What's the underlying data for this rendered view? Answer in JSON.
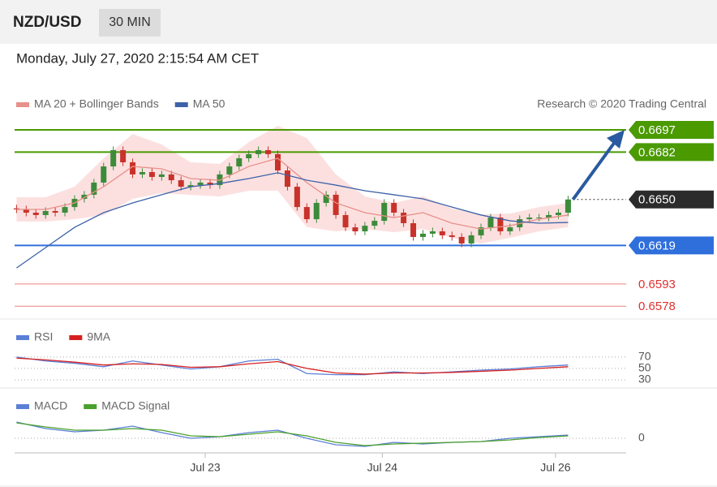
{
  "header": {
    "symbol": "NZD/USD",
    "interval": "30 MIN",
    "timestamp": "Monday, July 27, 2020 2:15:54 AM CET"
  },
  "chart_data": [
    {
      "type": "candlestick",
      "source": "Research © 2020 Trading Central",
      "xlim": [
        -0.2,
        63
      ],
      "ylim": [
        0.6571,
        0.6703
      ],
      "candles": {
        "up_color": "#3c8b3a",
        "down_color": "#c8322a",
        "x": [
          0,
          1,
          2,
          3,
          4,
          5,
          6,
          7,
          8,
          9,
          10,
          11,
          12,
          13,
          14,
          15,
          16,
          17,
          18,
          19,
          20,
          21,
          22,
          23,
          24,
          25,
          26,
          27,
          28,
          29,
          30,
          31,
          32,
          33,
          34,
          35,
          36,
          37,
          38,
          39,
          40,
          41,
          42,
          43,
          44,
          45,
          46,
          47,
          48,
          49,
          50,
          51,
          52,
          53,
          54,
          55,
          56,
          57
        ],
        "open": [
          0.6644,
          0.66433,
          0.66411,
          0.66395,
          0.66422,
          0.66411,
          0.66449,
          0.66504,
          0.66532,
          0.66614,
          0.66723,
          0.66833,
          0.66751,
          0.66669,
          0.66685,
          0.66652,
          0.66669,
          0.6663,
          0.66586,
          0.66597,
          0.66614,
          0.66597,
          0.66669,
          0.66723,
          0.66778,
          0.66806,
          0.66833,
          0.66806,
          0.66696,
          0.66586,
          0.66449,
          0.66367,
          0.66477,
          0.66532,
          0.66395,
          0.66312,
          0.66285,
          0.66323,
          0.66356,
          0.66477,
          0.66411,
          0.6634,
          0.66247,
          0.66269,
          0.66285,
          0.66258,
          0.66247,
          0.66203,
          0.66258,
          0.66312,
          0.66378,
          0.66285,
          0.66312,
          0.66367,
          0.66378,
          0.66378,
          0.66395,
          0.66411
        ],
        "high": [
          0.66465,
          0.66458,
          0.66436,
          0.66447,
          0.66447,
          0.66474,
          0.66529,
          0.66557,
          0.66639,
          0.66748,
          0.66858,
          0.66858,
          0.66776,
          0.6671,
          0.6671,
          0.66694,
          0.66694,
          0.66655,
          0.66622,
          0.66639,
          0.66639,
          0.66694,
          0.66748,
          0.66803,
          0.66831,
          0.66858,
          0.66858,
          0.66831,
          0.66721,
          0.66611,
          0.66474,
          0.66502,
          0.66557,
          0.66557,
          0.6642,
          0.66337,
          0.66348,
          0.66381,
          0.66502,
          0.66502,
          0.66436,
          0.66365,
          0.66294,
          0.6631,
          0.6631,
          0.66283,
          0.66272,
          0.66283,
          0.66337,
          0.66403,
          0.66403,
          0.66337,
          0.66392,
          0.66403,
          0.66403,
          0.6642,
          0.66436,
          0.66525
        ],
        "low": [
          0.66408,
          0.66386,
          0.6637,
          0.6637,
          0.66386,
          0.66386,
          0.66424,
          0.66479,
          0.66507,
          0.66589,
          0.66698,
          0.66726,
          0.66644,
          0.66644,
          0.66627,
          0.66627,
          0.66605,
          0.66561,
          0.66561,
          0.66572,
          0.66572,
          0.66572,
          0.66644,
          0.66698,
          0.66753,
          0.66781,
          0.66781,
          0.66671,
          0.66561,
          0.66424,
          0.66342,
          0.66342,
          0.66452,
          0.6637,
          0.66287,
          0.6626,
          0.6626,
          0.66298,
          0.66331,
          0.66386,
          0.66315,
          0.66222,
          0.66222,
          0.66244,
          0.66233,
          0.66222,
          0.66178,
          0.66178,
          0.66233,
          0.66287,
          0.6626,
          0.6626,
          0.66287,
          0.66342,
          0.66353,
          0.66353,
          0.6637,
          0.66386
        ],
        "close": [
          0.66433,
          0.66411,
          0.66395,
          0.66422,
          0.66411,
          0.66449,
          0.66504,
          0.66532,
          0.66614,
          0.66723,
          0.66833,
          0.66751,
          0.66669,
          0.66685,
          0.66652,
          0.66669,
          0.6663,
          0.66586,
          0.66597,
          0.66614,
          0.66597,
          0.66669,
          0.66723,
          0.66778,
          0.66806,
          0.66833,
          0.66806,
          0.66696,
          0.66586,
          0.66449,
          0.66367,
          0.66477,
          0.66532,
          0.66395,
          0.66312,
          0.66285,
          0.66323,
          0.66356,
          0.66477,
          0.66411,
          0.6634,
          0.66247,
          0.66269,
          0.66285,
          0.66258,
          0.66247,
          0.66203,
          0.66258,
          0.66312,
          0.66378,
          0.66285,
          0.66312,
          0.66367,
          0.66378,
          0.66378,
          0.66395,
          0.66411,
          0.665
        ]
      },
      "series": [
        {
          "name": "MA 20 + Bollinger Bands",
          "color": "#e8908a",
          "band_color": "#fbd3d3",
          "x": [
            0,
            3,
            6,
            9,
            12,
            15,
            18,
            21,
            24,
            27,
            30,
            33,
            36,
            39,
            42,
            45,
            48,
            51,
            54,
            57
          ],
          "values": [
            0.66433,
            0.66433,
            0.66477,
            0.66586,
            0.66723,
            0.66707,
            0.66641,
            0.6663,
            0.66723,
            0.66778,
            0.66614,
            0.66477,
            0.66411,
            0.66378,
            0.66411,
            0.6634,
            0.66301,
            0.66323,
            0.66367,
            0.66395
          ],
          "upper": [
            0.66515,
            0.66515,
            0.66587,
            0.66778,
            0.66942,
            0.66871,
            0.66751,
            0.6674,
            0.66887,
            0.66997,
            0.66915,
            0.66669,
            0.66521,
            0.66477,
            0.66521,
            0.66439,
            0.664,
            0.66405,
            0.66449,
            0.66477
          ],
          "lower": [
            0.66351,
            0.66351,
            0.66367,
            0.66394,
            0.66504,
            0.66543,
            0.66531,
            0.6652,
            0.66559,
            0.66559,
            0.66313,
            0.66285,
            0.66301,
            0.66279,
            0.66301,
            0.66241,
            0.66202,
            0.66241,
            0.66285,
            0.66313
          ]
        },
        {
          "name": "MA 50",
          "color": "#3d62a8",
          "x": [
            0,
            3,
            6,
            9,
            12,
            15,
            18,
            21,
            24,
            27,
            30,
            33,
            36,
            39,
            42,
            45,
            48,
            51,
            54,
            57
          ],
          "values": [
            0.66038,
            0.66175,
            0.66312,
            0.66411,
            0.66477,
            0.66532,
            0.66586,
            0.66608,
            0.66641,
            0.6668,
            0.6663,
            0.66597,
            0.66559,
            0.66532,
            0.66504,
            0.66449,
            0.66395,
            0.66356,
            0.6634,
            0.66345
          ]
        }
      ],
      "current_price": {
        "value": 0.665,
        "label": "0.6650",
        "color": "#2b2b2b"
      },
      "levels": [
        {
          "value": 0.6697,
          "color": "#4a9a00"
        },
        {
          "value": 0.6682,
          "color": "#4a9a00"
        },
        {
          "value": 0.6619,
          "color": "#2f6fdc"
        },
        {
          "value": 0.6593,
          "color": "#e03030"
        },
        {
          "value": 0.6578,
          "color": "#e03030"
        }
      ]
    },
    {
      "type": "line",
      "xlim": [
        -0.2,
        63
      ],
      "ylim": [
        20,
        84
      ],
      "yticks": [
        30,
        50,
        70
      ],
      "series": [
        {
          "name": "RSI",
          "color": "#5b7fd6",
          "x": [
            0,
            3,
            6,
            9,
            12,
            15,
            18,
            21,
            24,
            27,
            30,
            33,
            36,
            39,
            42,
            45,
            48,
            51,
            54,
            57
          ],
          "values": [
            70,
            63,
            59,
            53,
            63,
            56,
            49,
            53,
            63,
            66,
            41,
            39,
            39,
            44,
            41,
            44,
            47,
            49,
            53,
            56
          ]
        },
        {
          "name": "9MA",
          "color": "#d62020",
          "x": [
            0,
            3,
            6,
            9,
            12,
            15,
            18,
            21,
            24,
            27,
            30,
            33,
            36,
            39,
            42,
            45,
            48,
            51,
            54,
            57
          ],
          "values": [
            68,
            65,
            61,
            56,
            58,
            57,
            52,
            53,
            58,
            62,
            50,
            42,
            40,
            42,
            42,
            43,
            45,
            47,
            50,
            53
          ]
        }
      ]
    },
    {
      "type": "line",
      "xlim": [
        -0.2,
        63
      ],
      "ylim": [
        -0.00025,
        0.00055
      ],
      "yticks": [
        0
      ],
      "xticks": [
        {
          "value": 19.5,
          "label": "Jul 23"
        },
        {
          "value": 37.8,
          "label": "Jul 24"
        },
        {
          "value": 55.7,
          "label": "Jul 26"
        }
      ],
      "series": [
        {
          "name": "MACD",
          "color": "#5b7fd6",
          "x": [
            0,
            3,
            6,
            9,
            12,
            15,
            18,
            21,
            24,
            27,
            30,
            33,
            36,
            39,
            42,
            45,
            48,
            51,
            54,
            57
          ],
          "values": [
            0.0002,
            0.00012,
            8e-05,
            0.0001,
            0.00015,
            7e-05,
            0,
            2e-05,
            7e-05,
            0.0001,
            0,
            -8e-05,
            -0.0001,
            -5e-05,
            -7e-05,
            -5e-05,
            -4e-05,
            0,
            2e-05,
            4e-05
          ]
        },
        {
          "name": "MACD Signal",
          "color": "#4aa02c",
          "x": [
            0,
            3,
            6,
            9,
            12,
            15,
            18,
            21,
            24,
            27,
            30,
            33,
            36,
            39,
            42,
            45,
            48,
            51,
            54,
            57
          ],
          "values": [
            0.00019,
            0.00014,
            0.0001,
            0.0001,
            0.00012,
            0.0001,
            3e-05,
            2e-05,
            5e-05,
            8e-05,
            3e-05,
            -5e-05,
            -9e-05,
            -7e-05,
            -6e-05,
            -5e-05,
            -4e-05,
            -2e-05,
            1e-05,
            3e-05
          ]
        }
      ]
    }
  ]
}
